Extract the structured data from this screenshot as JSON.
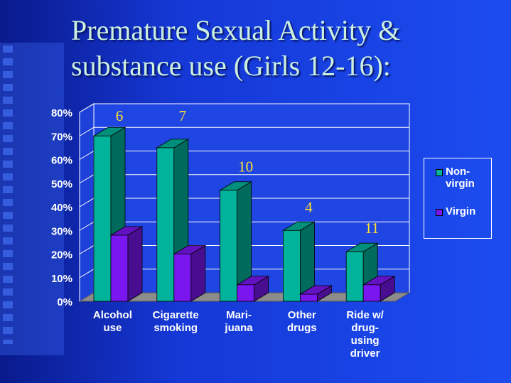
{
  "slide": {
    "title_line1": "Premature Sexual Activity &",
    "title_line2": "substance use (Girls 12-16):"
  },
  "chart_data": {
    "type": "bar",
    "title": "",
    "xlabel": "",
    "ylabel": "",
    "ylim": [
      0,
      80
    ],
    "y_ticks": [
      "0%",
      "10%",
      "20%",
      "30%",
      "40%",
      "50%",
      "60%",
      "70%",
      "80%"
    ],
    "grid": true,
    "legend_position": "right",
    "categories": [
      [
        "Alcohol",
        "use"
      ],
      [
        "Cigarette",
        "smoking"
      ],
      [
        "Mari-",
        "juana"
      ],
      [
        "Other",
        "drugs"
      ],
      [
        "Ride w/",
        "drug-",
        "using",
        "driver"
      ]
    ],
    "series": [
      {
        "name": "Non-virgin",
        "name_lines": [
          "Non-",
          "virgin"
        ],
        "color": "#00b39a",
        "values": [
          70,
          65,
          47,
          30,
          21
        ]
      },
      {
        "name": "Virgin",
        "name_lines": [
          "Virgin"
        ],
        "color": "#7a16f0",
        "values": [
          28,
          20,
          7,
          3,
          7
        ]
      }
    ],
    "annotations": [
      "6",
      "7",
      "10",
      "4",
      "11"
    ],
    "annotation_color": "#ffe033"
  }
}
